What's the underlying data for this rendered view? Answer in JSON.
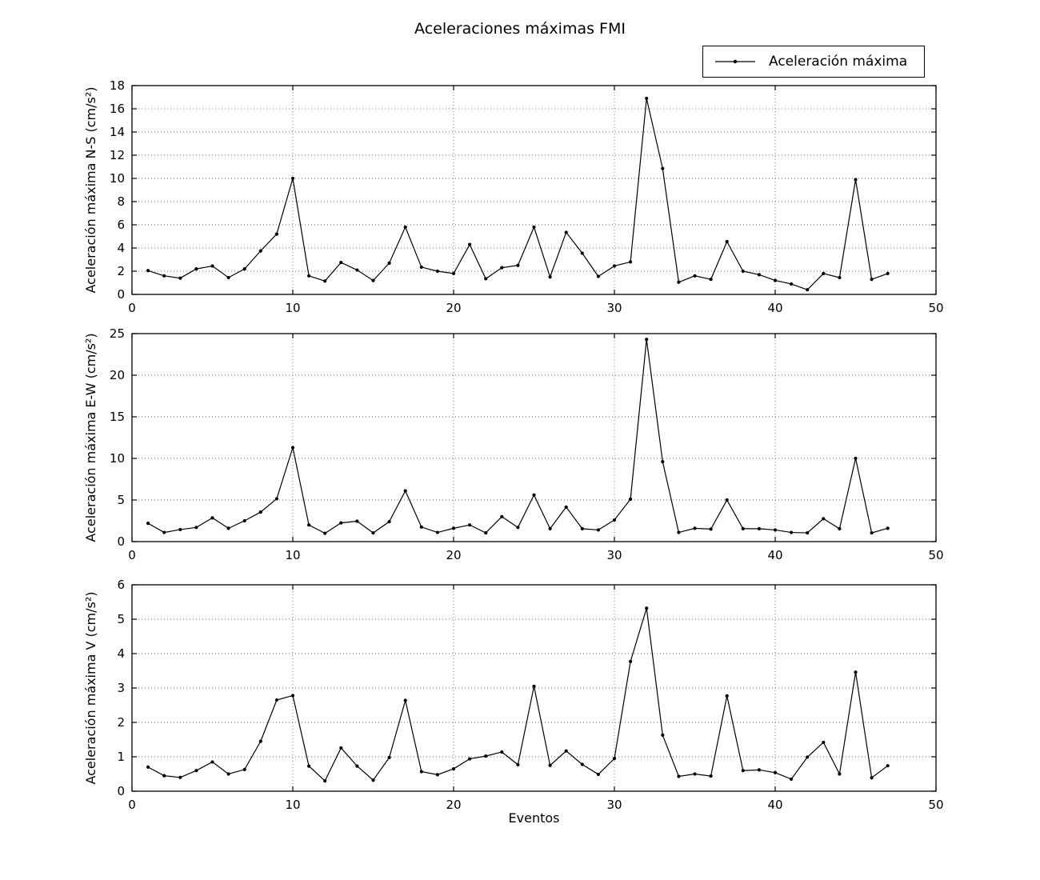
{
  "figure": {
    "title": "Aceleraciones máximas FMI",
    "legend_label": "Aceleración máxima",
    "xlabel": "Eventos",
    "background": "#ffffff",
    "line_color": "#000000",
    "grid_style": "dotted",
    "legend_position": "upper right, above first axes"
  },
  "chart_data": [
    {
      "type": "line",
      "name": "ns",
      "ylabel": "Aceleración máxima N-S (cm/s²)",
      "ylim": [
        0,
        18
      ],
      "ytick_step": 2,
      "xlim": [
        0,
        50
      ],
      "xticks": [
        0,
        10,
        20,
        30,
        40,
        50
      ],
      "legend": "Aceleración máxima",
      "x": [
        1,
        2,
        3,
        4,
        5,
        6,
        7,
        8,
        9,
        10,
        11,
        12,
        13,
        14,
        15,
        16,
        17,
        18,
        19,
        20,
        21,
        22,
        23,
        24,
        25,
        26,
        27,
        28,
        29,
        30,
        31,
        32,
        33,
        34,
        35,
        36,
        37,
        38,
        39,
        40,
        41,
        42,
        43,
        44,
        45,
        46,
        47
      ],
      "values": [
        2.05,
        1.6,
        1.4,
        2.2,
        2.45,
        1.45,
        2.2,
        3.75,
        5.2,
        10.0,
        1.6,
        1.15,
        2.75,
        2.1,
        1.2,
        2.7,
        5.8,
        2.35,
        2.0,
        1.8,
        4.3,
        1.35,
        2.3,
        2.5,
        5.8,
        1.5,
        5.35,
        3.55,
        1.55,
        2.45,
        2.8,
        16.9,
        10.85,
        1.05,
        1.6,
        1.3,
        4.55,
        2.0,
        1.7,
        1.2,
        0.9,
        0.4,
        1.8,
        1.45,
        9.9,
        1.3,
        1.8
      ]
    },
    {
      "type": "line",
      "name": "ew",
      "ylabel": "Aceleración máxima E-W (cm/s²)",
      "ylim": [
        0,
        25
      ],
      "ytick_step": 5,
      "xlim": [
        0,
        50
      ],
      "xticks": [
        0,
        10,
        20,
        30,
        40,
        50
      ],
      "legend": "Aceleración máxima",
      "x": [
        1,
        2,
        3,
        4,
        5,
        6,
        7,
        8,
        9,
        10,
        11,
        12,
        13,
        14,
        15,
        16,
        17,
        18,
        19,
        20,
        21,
        22,
        23,
        24,
        25,
        26,
        27,
        28,
        29,
        30,
        31,
        32,
        33,
        34,
        35,
        36,
        37,
        38,
        39,
        40,
        41,
        42,
        43,
        44,
        45,
        46,
        47
      ],
      "values": [
        2.2,
        1.1,
        1.45,
        1.7,
        2.85,
        1.6,
        2.5,
        3.55,
        5.15,
        11.3,
        2.0,
        1.0,
        2.25,
        2.45,
        1.05,
        2.4,
        6.1,
        1.75,
        1.1,
        1.6,
        2.0,
        1.05,
        3.0,
        1.7,
        5.6,
        1.55,
        4.15,
        1.55,
        1.4,
        2.6,
        5.1,
        24.3,
        9.6,
        1.1,
        1.6,
        1.5,
        5.0,
        1.55,
        1.55,
        1.4,
        1.1,
        1.05,
        2.75,
        1.55,
        10.0,
        1.05,
        1.6
      ]
    },
    {
      "type": "line",
      "name": "v",
      "ylabel": "Aceleración máxima V (cm/s²)",
      "xlabel": "Eventos",
      "ylim": [
        0,
        6
      ],
      "ytick_step": 1,
      "xlim": [
        0,
        50
      ],
      "xticks": [
        0,
        10,
        20,
        30,
        40,
        50
      ],
      "legend": "Aceleración máxima",
      "x": [
        1,
        2,
        3,
        4,
        5,
        6,
        7,
        8,
        9,
        10,
        11,
        12,
        13,
        14,
        15,
        16,
        17,
        18,
        19,
        20,
        21,
        22,
        23,
        24,
        25,
        26,
        27,
        28,
        29,
        30,
        31,
        32,
        33,
        34,
        35,
        36,
        37,
        38,
        39,
        40,
        41,
        42,
        43,
        44,
        45,
        46,
        47
      ],
      "values": [
        0.7,
        0.45,
        0.4,
        0.6,
        0.85,
        0.5,
        0.63,
        1.45,
        2.65,
        2.78,
        0.73,
        0.3,
        1.26,
        0.73,
        0.32,
        0.98,
        2.64,
        0.57,
        0.48,
        0.65,
        0.94,
        1.02,
        1.14,
        0.77,
        3.05,
        0.75,
        1.17,
        0.78,
        0.49,
        0.95,
        3.77,
        5.32,
        1.63,
        0.43,
        0.5,
        0.44,
        2.77,
        0.6,
        0.62,
        0.54,
        0.35,
        0.99,
        1.42,
        0.5,
        3.46,
        0.39,
        0.74
      ]
    }
  ]
}
